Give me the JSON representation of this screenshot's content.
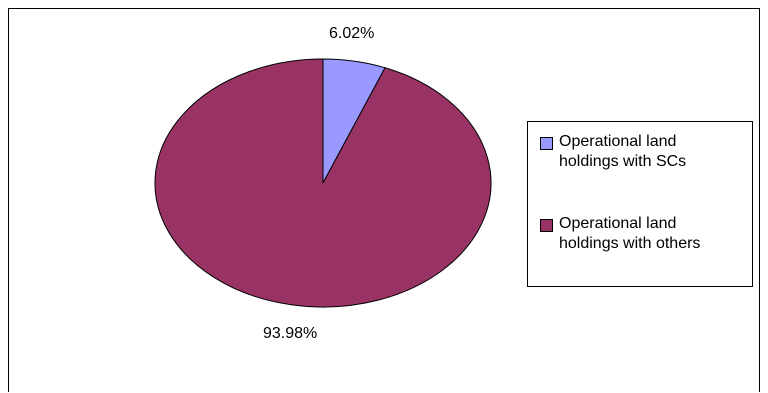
{
  "chart_data": {
    "type": "pie",
    "title": "",
    "slices": [
      {
        "label": "Operational land holdings with SCs",
        "value": 6.02,
        "value_label": "6.02%",
        "color": "#9999ff"
      },
      {
        "label": "Operational land holdings with others",
        "value": 93.98,
        "value_label": "93.98%",
        "color": "#993366"
      }
    ],
    "legend_position": "right",
    "start_angle_deg": 0,
    "direction": "clockwise"
  }
}
